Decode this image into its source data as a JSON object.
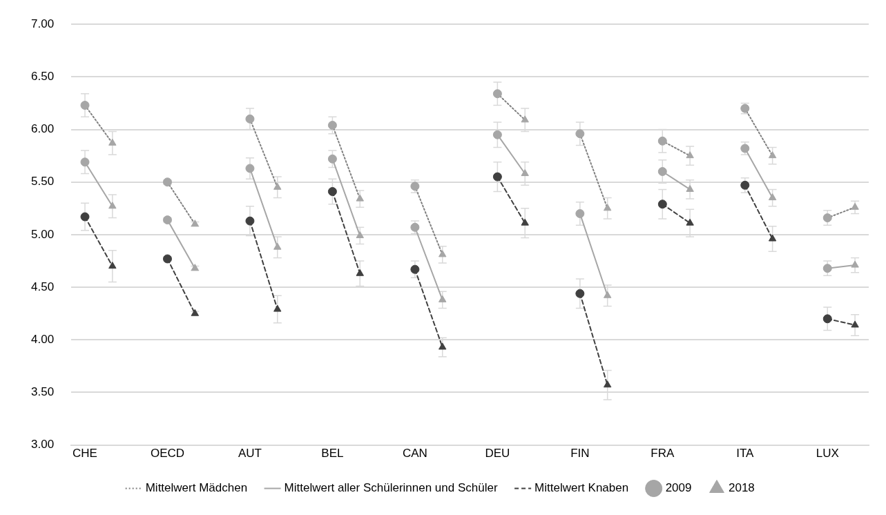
{
  "chart_data": {
    "type": "line",
    "categories": [
      "CHE",
      null,
      null,
      "OECD",
      null,
      null,
      "AUT",
      null,
      null,
      "BEL",
      null,
      null,
      "CAN",
      null,
      null,
      "DEU",
      null,
      null,
      "FIN",
      null,
      null,
      "FRA",
      null,
      null,
      "ITA",
      null,
      null,
      "LUX",
      null
    ],
    "ylim": [
      3,
      7
    ],
    "yticks": [
      {
        "value": 3,
        "label": "3.00"
      },
      {
        "value": 3.5,
        "label": "3.50"
      },
      {
        "value": 4,
        "label": "4.00"
      },
      {
        "value": 4.5,
        "label": "4.50"
      },
      {
        "value": 5,
        "label": "5.00"
      },
      {
        "value": 5.5,
        "label": "5.50"
      },
      {
        "value": 6,
        "label": "6.00"
      },
      {
        "value": 6.5,
        "label": "6.50"
      },
      {
        "value": 7,
        "label": "7.00"
      }
    ],
    "grid": "y",
    "legend": "bottom",
    "series": [
      {
        "name": "Mittelwert Mädchen",
        "line_style": "dotted",
        "marker": "none",
        "color": "#808080",
        "values": [
          6.23,
          5.87,
          null,
          5.5,
          5.1,
          null,
          6.1,
          5.45,
          null,
          6.04,
          5.34,
          null,
          5.46,
          4.81,
          null,
          6.34,
          6.09,
          null,
          5.96,
          5.25,
          null,
          5.89,
          5.75,
          null,
          6.2,
          5.75,
          null,
          5.16,
          5.26
        ]
      },
      {
        "name": "Mittelwert aller Schülerinnen und Schüler",
        "line_style": "solid",
        "marker": "none",
        "color": "#a6a6a6",
        "values": [
          5.69,
          5.27,
          null,
          5.14,
          4.68,
          null,
          5.63,
          4.88,
          null,
          5.72,
          4.99,
          null,
          5.07,
          4.38,
          null,
          5.95,
          5.58,
          null,
          5.2,
          4.42,
          null,
          5.6,
          5.43,
          null,
          5.82,
          5.35,
          null,
          4.68,
          4.71
        ]
      },
      {
        "name": "Mittelwert Knaben",
        "line_style": "dashed",
        "marker": "none",
        "color": "#404040",
        "values": [
          5.17,
          4.7,
          null,
          4.77,
          4.25,
          null,
          5.13,
          4.29,
          null,
          5.41,
          4.63,
          null,
          4.67,
          3.93,
          null,
          5.55,
          5.11,
          null,
          4.44,
          3.57,
          null,
          5.29,
          5.11,
          null,
          5.47,
          4.96,
          null,
          4.2,
          4.14
        ]
      },
      {
        "name": "2009",
        "type": "scatter",
        "marker": "circle",
        "color": "#a6a6a6",
        "values": [
          6.23,
          null,
          null,
          5.5,
          null,
          null,
          6.1,
          null,
          null,
          6.04,
          null,
          null,
          5.46,
          null,
          null,
          6.34,
          null,
          null,
          5.96,
          null,
          null,
          5.89,
          null,
          null,
          6.2,
          null,
          null,
          5.16,
          null
        ],
        "errors": [
          0.11,
          null,
          null,
          0.02,
          null,
          null,
          0.1,
          null,
          null,
          0.08,
          null,
          null,
          0.06,
          null,
          null,
          0.11,
          null,
          null,
          0.11,
          null,
          null,
          0.11,
          null,
          null,
          0.05,
          null,
          null,
          0.07,
          null
        ]
      },
      {
        "type": "scatter",
        "marker": "circle",
        "color": "#a6a6a6",
        "values": [
          5.69,
          null,
          null,
          5.14,
          null,
          null,
          5.63,
          null,
          null,
          5.72,
          null,
          null,
          5.07,
          null,
          null,
          5.95,
          null,
          null,
          5.2,
          null,
          null,
          5.6,
          null,
          null,
          5.82,
          null,
          null,
          4.68,
          null
        ],
        "errors": [
          0.11,
          null,
          null,
          0.02,
          null,
          null,
          0.1,
          null,
          null,
          0.08,
          null,
          null,
          0.06,
          null,
          null,
          0.12,
          null,
          null,
          0.11,
          null,
          null,
          0.11,
          null,
          null,
          0.06,
          null,
          null,
          0.07,
          null
        ]
      },
      {
        "type": "scatter",
        "marker": "circle",
        "color": "#404040",
        "values": [
          5.17,
          null,
          null,
          4.77,
          null,
          null,
          5.13,
          null,
          null,
          5.41,
          null,
          null,
          4.67,
          null,
          null,
          5.55,
          null,
          null,
          4.44,
          null,
          null,
          5.29,
          null,
          null,
          5.47,
          null,
          null,
          4.2,
          null
        ],
        "errors": [
          0.13,
          null,
          null,
          0.02,
          null,
          null,
          0.14,
          null,
          null,
          0.12,
          null,
          null,
          0.08,
          null,
          null,
          0.14,
          null,
          null,
          0.14,
          null,
          null,
          0.14,
          null,
          null,
          0.07,
          null,
          null,
          0.11,
          null
        ]
      },
      {
        "name": "2018",
        "type": "scatter",
        "marker": "triangle",
        "color": "#a6a6a6",
        "values": [
          null,
          5.87,
          null,
          null,
          5.1,
          null,
          null,
          5.45,
          null,
          null,
          5.34,
          null,
          null,
          4.81,
          null,
          null,
          6.09,
          null,
          null,
          5.25,
          null,
          null,
          5.75,
          null,
          null,
          5.75,
          null,
          null,
          5.26
        ],
        "errors": [
          null,
          0.11,
          null,
          null,
          0.02,
          null,
          null,
          0.1,
          null,
          null,
          0.08,
          null,
          null,
          0.08,
          null,
          null,
          0.11,
          null,
          null,
          0.1,
          null,
          null,
          0.09,
          null,
          null,
          0.08,
          null,
          null,
          0.06
        ]
      },
      {
        "type": "scatter",
        "marker": "triangle",
        "color": "#a6a6a6",
        "values": [
          null,
          5.27,
          null,
          null,
          4.68,
          null,
          null,
          4.88,
          null,
          null,
          4.99,
          null,
          null,
          4.38,
          null,
          null,
          5.58,
          null,
          null,
          4.42,
          null,
          null,
          5.43,
          null,
          null,
          5.35,
          null,
          null,
          4.71
        ],
        "errors": [
          null,
          0.11,
          null,
          null,
          0.02,
          null,
          null,
          0.1,
          null,
          null,
          0.08,
          null,
          null,
          0.08,
          null,
          null,
          0.11,
          null,
          null,
          0.1,
          null,
          null,
          0.09,
          null,
          null,
          0.08,
          null,
          null,
          0.07
        ]
      },
      {
        "type": "scatter",
        "marker": "triangle",
        "color": "#404040",
        "values": [
          null,
          4.7,
          null,
          null,
          4.25,
          null,
          null,
          4.29,
          null,
          null,
          4.63,
          null,
          null,
          3.93,
          null,
          null,
          5.11,
          null,
          null,
          3.57,
          null,
          null,
          5.11,
          null,
          null,
          4.96,
          null,
          null,
          4.14
        ],
        "errors": [
          null,
          0.15,
          null,
          null,
          0.02,
          null,
          null,
          0.13,
          null,
          null,
          0.12,
          null,
          null,
          0.09,
          null,
          null,
          0.14,
          null,
          null,
          0.14,
          null,
          null,
          0.13,
          null,
          null,
          0.12,
          null,
          null,
          0.1
        ]
      }
    ]
  }
}
